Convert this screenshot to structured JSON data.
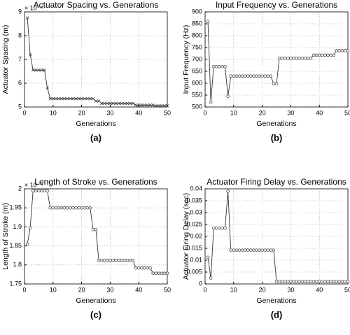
{
  "chart_data": [
    {
      "type": "line",
      "title": "Actuator Spacing vs. Generations",
      "xlabel": "Generations",
      "ylabel": "Actuator Spacing (m)",
      "y_multiplier": "× 10⁻⁴",
      "caption": "(a)",
      "marker": "x",
      "color": "#333333",
      "grid": true,
      "xlim": [
        0,
        50
      ],
      "xticks": [
        0,
        10,
        20,
        30,
        40,
        50
      ],
      "ylim": [
        5,
        9
      ],
      "yticks": [
        5,
        6,
        7,
        8,
        9
      ],
      "x": [
        1,
        2,
        3,
        4,
        5,
        6,
        7,
        8,
        9,
        10,
        11,
        12,
        13,
        14,
        15,
        16,
        17,
        18,
        19,
        20,
        21,
        22,
        23,
        24,
        25,
        26,
        27,
        28,
        29,
        30,
        31,
        32,
        33,
        34,
        35,
        36,
        37,
        38,
        39,
        40,
        41,
        42,
        43,
        44,
        45,
        46,
        47,
        48,
        49,
        50
      ],
      "values": [
        8.75,
        7.2,
        6.55,
        6.55,
        6.55,
        6.55,
        6.55,
        5.8,
        5.35,
        5.35,
        5.35,
        5.35,
        5.35,
        5.35,
        5.35,
        5.35,
        5.35,
        5.35,
        5.35,
        5.35,
        5.35,
        5.35,
        5.35,
        5.35,
        5.25,
        5.25,
        5.15,
        5.15,
        5.15,
        5.15,
        5.15,
        5.15,
        5.15,
        5.15,
        5.15,
        5.15,
        5.15,
        5.15,
        5.08,
        5.08,
        5.08,
        5.08,
        5.08,
        5.08,
        5.08,
        5.05,
        5.05,
        5.05,
        5.05,
        5.05
      ]
    },
    {
      "type": "line",
      "title": "Input Frequency vs. Generations",
      "xlabel": "Generations",
      "ylabel": "Input Frequency (Hz)",
      "caption": "(b)",
      "marker": "o",
      "color": "#333333",
      "grid": true,
      "xlim": [
        0,
        50
      ],
      "xticks": [
        0,
        10,
        20,
        30,
        40,
        50
      ],
      "ylim": [
        500,
        900
      ],
      "yticks": [
        500,
        550,
        600,
        650,
        700,
        750,
        800,
        850,
        900
      ],
      "x": [
        1,
        2,
        3,
        4,
        5,
        6,
        7,
        8,
        9,
        10,
        11,
        12,
        13,
        14,
        15,
        16,
        17,
        18,
        19,
        20,
        21,
        22,
        23,
        24,
        25,
        26,
        27,
        28,
        29,
        30,
        31,
        32,
        33,
        34,
        35,
        36,
        37,
        38,
        39,
        40,
        41,
        42,
        43,
        44,
        45,
        46,
        47,
        48,
        49,
        50
      ],
      "values": [
        860,
        520,
        670,
        670,
        670,
        670,
        670,
        545,
        630,
        630,
        630,
        630,
        630,
        630,
        630,
        630,
        630,
        630,
        630,
        630,
        630,
        630,
        630,
        598,
        598,
        705,
        705,
        705,
        705,
        705,
        705,
        705,
        705,
        705,
        705,
        705,
        705,
        718,
        718,
        718,
        718,
        718,
        718,
        718,
        718,
        737,
        737,
        737,
        737,
        737
      ]
    },
    {
      "type": "line",
      "title": "Length of Stroke vs. Generations",
      "xlabel": "Generations",
      "ylabel": "Length of Stroke (m)",
      "y_multiplier": "× 10⁻⁴",
      "caption": "(c)",
      "marker": "o",
      "color": "#333333",
      "grid": true,
      "xlim": [
        0,
        50
      ],
      "xticks": [
        0,
        10,
        20,
        30,
        40,
        50
      ],
      "ylim": [
        1.75,
        2
      ],
      "yticks": [
        1.75,
        1.8,
        1.85,
        1.9,
        1.95,
        2
      ],
      "x": [
        1,
        2,
        3,
        4,
        5,
        6,
        7,
        8,
        9,
        10,
        11,
        12,
        13,
        14,
        15,
        16,
        17,
        18,
        19,
        20,
        21,
        22,
        23,
        24,
        25,
        26,
        27,
        28,
        29,
        30,
        31,
        32,
        33,
        34,
        35,
        36,
        37,
        38,
        39,
        40,
        41,
        42,
        43,
        44,
        45,
        46,
        47,
        48,
        49,
        50
      ],
      "values": [
        1.855,
        1.898,
        1.995,
        1.995,
        1.995,
        1.995,
        1.995,
        1.995,
        1.95,
        1.95,
        1.95,
        1.95,
        1.95,
        1.95,
        1.95,
        1.95,
        1.95,
        1.95,
        1.95,
        1.95,
        1.95,
        1.95,
        1.95,
        1.893,
        1.893,
        1.812,
        1.812,
        1.812,
        1.812,
        1.812,
        1.812,
        1.812,
        1.812,
        1.812,
        1.812,
        1.812,
        1.812,
        1.812,
        1.792,
        1.792,
        1.792,
        1.792,
        1.792,
        1.792,
        1.778,
        1.778,
        1.778,
        1.778,
        1.778,
        1.778
      ]
    },
    {
      "type": "line",
      "title": "Actuator Firing Delay vs. Generations",
      "xlabel": "Generations",
      "ylabel": "Actuator Firing Delay (sec)",
      "caption": "(d)",
      "marker": "o",
      "color": "#333333",
      "grid": true,
      "xlim": [
        0,
        50
      ],
      "xticks": [
        0,
        10,
        20,
        30,
        40,
        50
      ],
      "ylim": [
        0,
        0.04
      ],
      "yticks": [
        0,
        0.005,
        0.01,
        0.015,
        0.02,
        0.025,
        0.03,
        0.035,
        0.04
      ],
      "x": [
        1,
        2,
        3,
        4,
        5,
        6,
        7,
        8,
        9,
        10,
        11,
        12,
        13,
        14,
        15,
        16,
        17,
        18,
        19,
        20,
        21,
        22,
        23,
        24,
        25,
        26,
        27,
        28,
        29,
        30,
        31,
        32,
        33,
        34,
        35,
        36,
        37,
        38,
        39,
        40,
        41,
        42,
        43,
        44,
        45,
        46,
        47,
        48,
        49,
        50
      ],
      "values": [
        0.0112,
        0.0025,
        0.0235,
        0.0235,
        0.0235,
        0.0235,
        0.0235,
        0.039,
        0.0142,
        0.0142,
        0.0142,
        0.0142,
        0.0142,
        0.0142,
        0.0142,
        0.0142,
        0.0142,
        0.0142,
        0.0142,
        0.0142,
        0.0142,
        0.0142,
        0.0142,
        0.0142,
        0.001,
        0.001,
        0.001,
        0.001,
        0.001,
        0.001,
        0.001,
        0.001,
        0.001,
        0.001,
        0.001,
        0.001,
        0.001,
        0.001,
        0.001,
        0.001,
        0.001,
        0.001,
        0.001,
        0.001,
        0.001,
        0.001,
        0.001,
        0.001,
        0.001,
        0.001
      ]
    }
  ]
}
